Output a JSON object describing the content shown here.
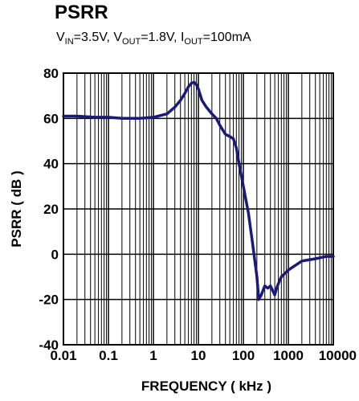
{
  "chart_data": {
    "type": "line",
    "title": "PSRR",
    "subtitle": {
      "vin_label": "V",
      "vin_sub": "IN",
      "vin_value": "=3.5V, ",
      "vout_label": "V",
      "vout_sub": "OUT",
      "vout_value": "=1.8V, ",
      "iout_label": "I",
      "iout_sub": "OUT",
      "iout_value": "=100mA"
    },
    "xlabel": "FREQUENCY ( kHz )",
    "ylabel": "PSRR ( dB )",
    "x_scale": "log",
    "xlim": [
      0.01,
      10000
    ],
    "ylim": [
      -40,
      80
    ],
    "xticks": [
      0.01,
      0.1,
      1,
      10,
      100,
      1000,
      10000
    ],
    "xtick_labels": [
      "0.01",
      "0.1",
      "1",
      "10",
      "100",
      "1000",
      "10000"
    ],
    "yticks": [
      -40,
      -20,
      0,
      20,
      40,
      60,
      80
    ],
    "ytick_labels": [
      "-40",
      "-20",
      "0",
      "20",
      "40",
      "60",
      "80"
    ],
    "grid": true,
    "line_color": "#1a1a7a",
    "series": [
      {
        "x": [
          0.01,
          0.02,
          0.05,
          0.1,
          0.2,
          0.5,
          1,
          2,
          3,
          4,
          5,
          6,
          7,
          8,
          9,
          10,
          12,
          15,
          20,
          25,
          30,
          40,
          50,
          60,
          70,
          80,
          100,
          130,
          160,
          200,
          220,
          250,
          300,
          350,
          400,
          500,
          550,
          600,
          700,
          1000,
          2000,
          4000,
          7000,
          10000
        ],
        "y": [
          61,
          61,
          60.5,
          60.5,
          60,
          60,
          60.5,
          62,
          65,
          68,
          71,
          74,
          75.5,
          76,
          75,
          73,
          68,
          65,
          62,
          60,
          57,
          53,
          52,
          51,
          47,
          40,
          30,
          18,
          5,
          -10,
          -20,
          -18,
          -14,
          -15,
          -14,
          -18,
          -15,
          -13,
          -10,
          -7,
          -3,
          -2,
          -1,
          -1
        ]
      }
    ]
  }
}
